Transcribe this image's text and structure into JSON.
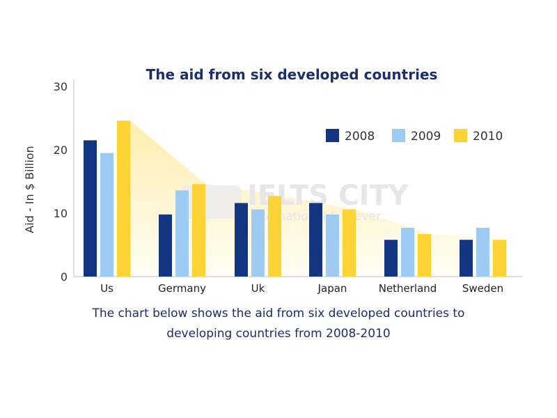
{
  "chart_data": {
    "type": "bar",
    "title": "The aid from six developed countries",
    "xlabel": "",
    "ylabel": "Aid - In $ Billion",
    "ylim": [
      0,
      30
    ],
    "yticks": [
      0,
      10,
      20,
      30
    ],
    "grid": false,
    "legend_position": "top-right",
    "categories": [
      "Us",
      "Germany",
      "Uk",
      "Japan",
      "Netherland",
      "Sweden"
    ],
    "series": [
      {
        "name": "2008",
        "color": "#14357f",
        "values": [
          21.5,
          9.8,
          11.6,
          11.6,
          5.8,
          5.8
        ]
      },
      {
        "name": "2009",
        "color": "#9ecbf2",
        "values": [
          19.5,
          13.6,
          10.6,
          9.8,
          7.7,
          7.7
        ]
      },
      {
        "name": "2010",
        "color": "#fdd335",
        "values": [
          24.6,
          14.6,
          12.7,
          10.6,
          6.7,
          5.8
        ]
      }
    ]
  },
  "watermark": {
    "brand": "IELTS CITY",
    "tagline": "International & Clever"
  },
  "caption": {
    "line1": "The chart below shows the aid from six developed countries to",
    "line2": "developing countries from 2008-2010"
  }
}
